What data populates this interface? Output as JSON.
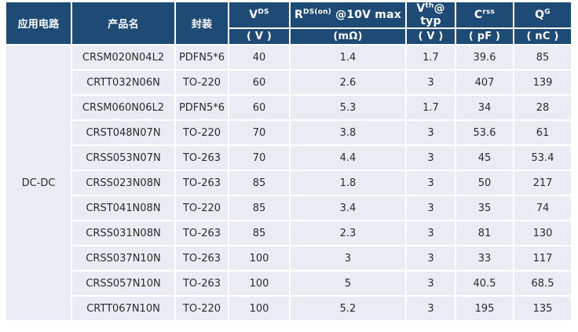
{
  "colors": {
    "header_bg": "#1E4A76",
    "row_bg": "#E9ECF2",
    "header_text": "#FFFFFF",
    "body_text": "#2B2B2B",
    "gridline": "#FFFFFF"
  },
  "table": {
    "headers": {
      "application_circuit": "应用电路",
      "product_name": "产品名",
      "package": "封装",
      "spec_columns": [
        {
          "base": "V",
          "sup": "DS",
          "rest": "",
          "unit": "( V )"
        },
        {
          "base": "R",
          "sup": "DS(on)",
          "rest": " @10V max",
          "unit": "(mΩ)"
        },
        {
          "base": "V",
          "sup": "th",
          "rest": "@ typ",
          "unit": "( V )"
        },
        {
          "base": "C",
          "sup": "rss",
          "rest": "",
          "unit": "( pF )"
        },
        {
          "base": "Q",
          "sup": "G",
          "rest": "",
          "unit": "( nC )"
        }
      ]
    },
    "group_label": "DC-DC",
    "rows": [
      {
        "product": "CRSM020N04L2",
        "package": "PDFN5*6",
        "vds": "40",
        "rds_on": "1.4",
        "vth": "1.7",
        "crss": "39.6",
        "qg": "85"
      },
      {
        "product": "CRTT032N06N",
        "package": "TO-220",
        "vds": "60",
        "rds_on": "2.6",
        "vth": "3",
        "crss": "407",
        "qg": "139"
      },
      {
        "product": "CRSM060N06L2",
        "package": "PDFN5*6",
        "vds": "60",
        "rds_on": "5.3",
        "vth": "1.7",
        "crss": "34",
        "qg": "28"
      },
      {
        "product": "CRST048N07N",
        "package": "TO-220",
        "vds": "70",
        "rds_on": "3.8",
        "vth": "3",
        "crss": "53.6",
        "qg": "61"
      },
      {
        "product": "CRSS053N07N",
        "package": "TO-263",
        "vds": "70",
        "rds_on": "4.4",
        "vth": "3",
        "crss": "45",
        "qg": "53.4"
      },
      {
        "product": "CRSS023N08N",
        "package": "TO-263",
        "vds": "85",
        "rds_on": "1.8",
        "vth": "3",
        "crss": "50",
        "qg": "217"
      },
      {
        "product": "CRST041N08N",
        "package": "TO-220",
        "vds": "85",
        "rds_on": "3.4",
        "vth": "3",
        "crss": "35",
        "qg": "74"
      },
      {
        "product": "CRSS031N08N",
        "package": "TO-263",
        "vds": "85",
        "rds_on": "2.3",
        "vth": "3",
        "crss": "81",
        "qg": "130"
      },
      {
        "product": "CRSS037N10N",
        "package": "TO-263",
        "vds": "100",
        "rds_on": "3",
        "vth": "3",
        "crss": "33",
        "qg": "117"
      },
      {
        "product": "CRSS057N10N",
        "package": "TO-263",
        "vds": "100",
        "rds_on": "5",
        "vth": "3",
        "crss": "40.5",
        "qg": "68.5"
      },
      {
        "product": "CRTT067N10N",
        "package": "TO-220",
        "vds": "100",
        "rds_on": "5.2",
        "vth": "3",
        "crss": "195",
        "qg": "135"
      }
    ]
  }
}
